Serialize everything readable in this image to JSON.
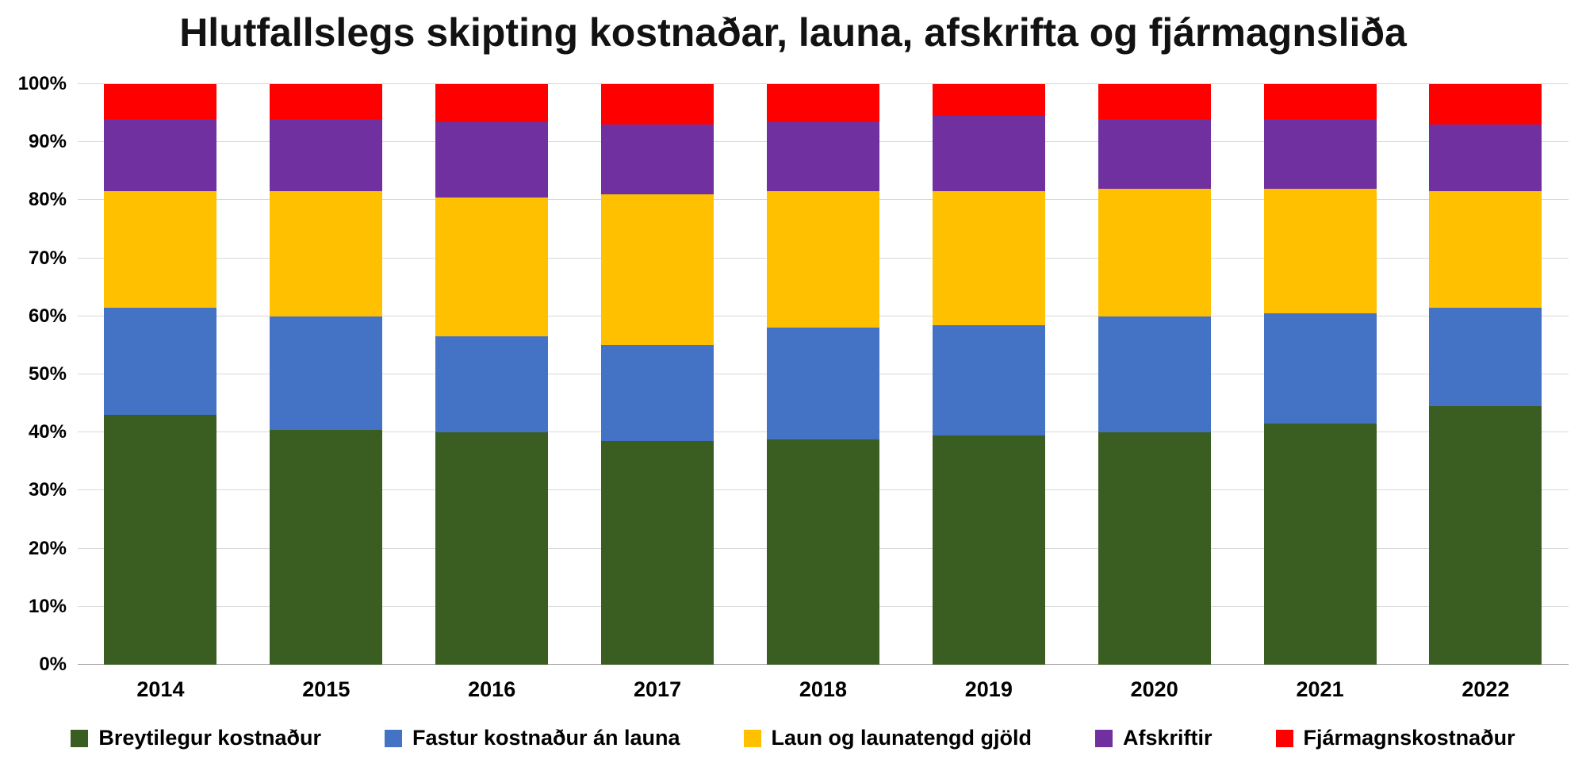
{
  "chart_data": {
    "type": "bar",
    "stacked": true,
    "percent_stacked": true,
    "title": "Hlutfallslegs skipting kostnaðar, launa, afskrifta og fjármagnsliða",
    "categories": [
      "2014",
      "2015",
      "2016",
      "2017",
      "2018",
      "2019",
      "2020",
      "2021",
      "2022"
    ],
    "series": [
      {
        "name": "Breytilegur kostnaður",
        "color": "#3A5E22",
        "values": [
          43.0,
          40.5,
          40.0,
          38.5,
          38.8,
          39.5,
          40.0,
          41.5,
          44.5
        ]
      },
      {
        "name": "Fastur kostnaður án launa",
        "color": "#4472C4",
        "values": [
          18.5,
          19.5,
          16.5,
          16.5,
          19.3,
          19.0,
          20.0,
          19.0,
          17.0
        ]
      },
      {
        "name": "Laun og launatengd gjöld",
        "color": "#FFC000",
        "values": [
          20.0,
          21.5,
          24.0,
          26.0,
          23.4,
          23.0,
          22.0,
          21.5,
          20.0
        ]
      },
      {
        "name": "Afskriftir",
        "color": "#7030A0",
        "values": [
          12.5,
          12.5,
          13.0,
          12.0,
          12.0,
          13.0,
          12.0,
          12.0,
          11.5
        ]
      },
      {
        "name": "Fjármagnskostnaður",
        "color": "#FF0000",
        "values": [
          6.0,
          6.0,
          6.5,
          7.0,
          6.5,
          5.5,
          6.0,
          6.0,
          7.0
        ]
      }
    ],
    "xlabel": "",
    "ylabel": "",
    "ylim": [
      0,
      100
    ],
    "y_tick_step": 10,
    "y_ticks": [
      "0%",
      "10%",
      "20%",
      "30%",
      "40%",
      "50%",
      "60%",
      "70%",
      "80%",
      "90%",
      "100%"
    ],
    "grid": true,
    "legend_position": "bottom"
  }
}
